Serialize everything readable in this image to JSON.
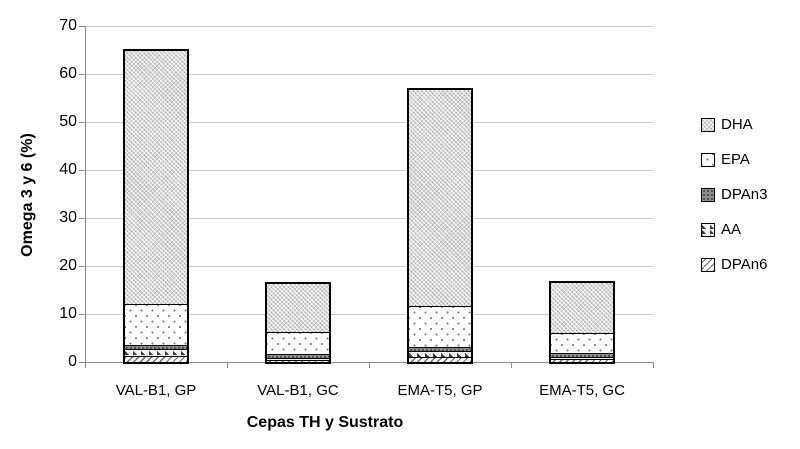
{
  "chart_data": {
    "type": "bar",
    "stacked": true,
    "xlabel": "Cepas TH y Sustrato",
    "ylabel": "Omega 3 y 6 (%)",
    "ylim": [
      0,
      70
    ],
    "yticks": [
      0,
      10,
      20,
      30,
      40,
      50,
      60,
      70
    ],
    "grid": "horizontal",
    "legend_position": "right",
    "categories": [
      "VAL-B1, GP",
      "VAL-B1, GC",
      "EMA-T5, GP",
      "EMA-T5, GC"
    ],
    "stack_order_bottom_to_top": [
      "DPAn6",
      "AA",
      "DPAn3",
      "EPA",
      "DHA"
    ],
    "series": [
      {
        "name": "DHA",
        "pattern": "gray-crosshatch",
        "values": [
          52.8,
          10.1,
          45.0,
          10.5
        ]
      },
      {
        "name": "EPA",
        "pattern": "white-dots",
        "values": [
          8.5,
          4.6,
          8.6,
          4.1
        ]
      },
      {
        "name": "DPAn3",
        "pattern": "dark-gray-dots",
        "values": [
          0.8,
          0.7,
          0.9,
          0.9
        ]
      },
      {
        "name": "AA",
        "pattern": "dark-triangles",
        "values": [
          1.4,
          0.5,
          1.2,
          0.4
        ]
      },
      {
        "name": "DPAn6",
        "pattern": "diagonal-stripes",
        "values": [
          1.3,
          0.4,
          1.0,
          0.6
        ]
      }
    ],
    "totals": [
      64.8,
      16.3,
      56.7,
      16.5
    ],
    "legend": [
      "DHA",
      "EPA",
      "DPAn3",
      "AA",
      "DPAn6"
    ],
    "colors": {
      "background": "#ffffff",
      "gridline": "#c9c9c9",
      "axis": "#8c8c8c",
      "text": "#000000",
      "bar_border": "#000000"
    }
  }
}
